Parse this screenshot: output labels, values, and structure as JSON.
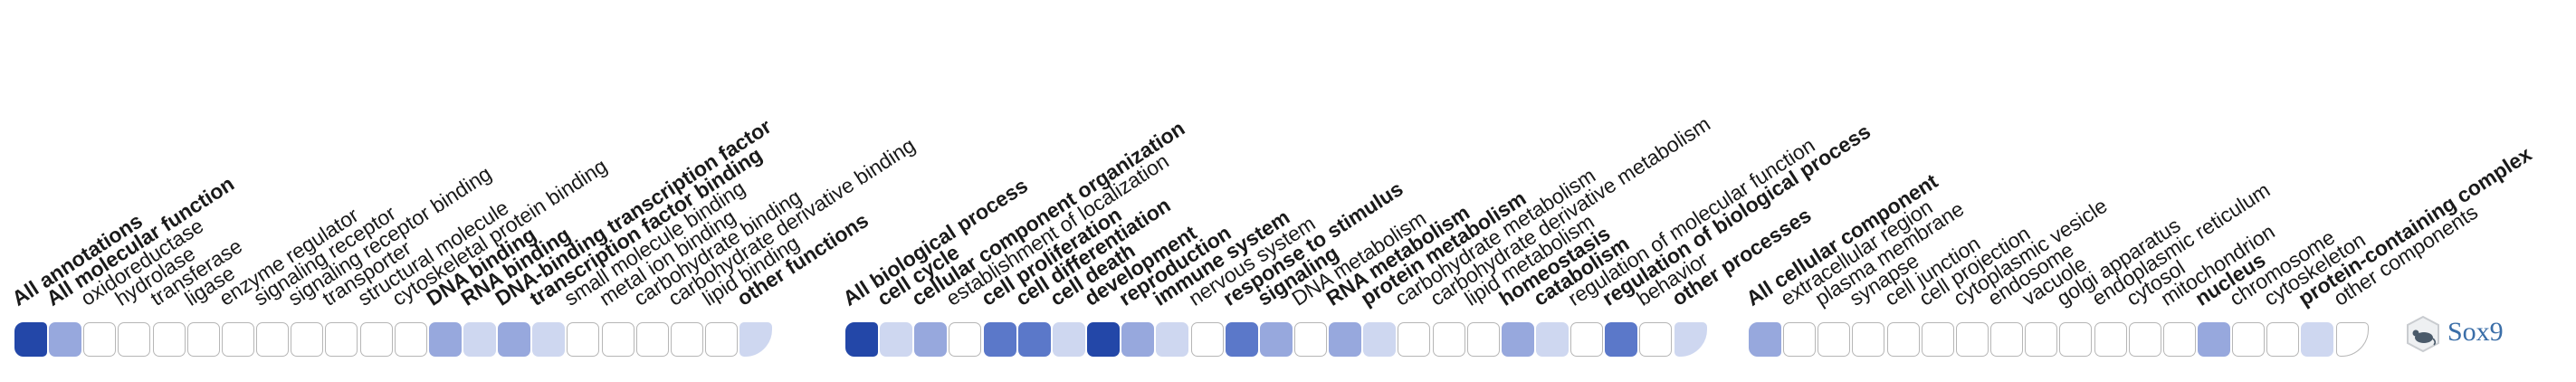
{
  "gene": {
    "symbol": "Sox9",
    "icon": "mouse-icon"
  },
  "colors": {
    "dark": "#2347a8",
    "strong": "#5b78c9",
    "medium": "#97a8dd",
    "light": "#ced7f0",
    "empty": "#ffffff"
  },
  "groups": [
    {
      "id": "molecular-function",
      "cells": [
        {
          "label": "All annotations",
          "bold": true,
          "level": "dark"
        },
        {
          "label": "All molecular function",
          "bold": true,
          "level": "medium"
        },
        {
          "label": "oxidoreductase",
          "bold": false,
          "level": "empty"
        },
        {
          "label": "hydrolase",
          "bold": false,
          "level": "empty"
        },
        {
          "label": "transferase",
          "bold": false,
          "level": "empty"
        },
        {
          "label": "ligase",
          "bold": false,
          "level": "empty"
        },
        {
          "label": "enzyme regulator",
          "bold": false,
          "level": "empty"
        },
        {
          "label": "signaling receptor",
          "bold": false,
          "level": "empty"
        },
        {
          "label": "signaling receptor binding",
          "bold": false,
          "level": "empty"
        },
        {
          "label": "transporter",
          "bold": false,
          "level": "empty"
        },
        {
          "label": "structural molecule",
          "bold": false,
          "level": "empty"
        },
        {
          "label": "cytoskeletal protein binding",
          "bold": false,
          "level": "empty"
        },
        {
          "label": "DNA binding",
          "bold": true,
          "level": "medium"
        },
        {
          "label": "RNA binding",
          "bold": true,
          "level": "light"
        },
        {
          "label": "DNA-binding transcription factor",
          "bold": true,
          "level": "medium"
        },
        {
          "label": "transcription factor binding",
          "bold": true,
          "level": "light"
        },
        {
          "label": "small molecule binding",
          "bold": false,
          "level": "empty"
        },
        {
          "label": "metal ion binding",
          "bold": false,
          "level": "empty"
        },
        {
          "label": "carbohydrate binding",
          "bold": false,
          "level": "empty"
        },
        {
          "label": "carbohydrate derivative binding",
          "bold": false,
          "level": "empty"
        },
        {
          "label": "lipid binding",
          "bold": false,
          "level": "empty"
        },
        {
          "label": "other functions",
          "bold": true,
          "level": "light"
        }
      ]
    },
    {
      "id": "biological-process",
      "cells": [
        {
          "label": "All biological process",
          "bold": true,
          "level": "dark"
        },
        {
          "label": "cell cycle",
          "bold": true,
          "level": "light"
        },
        {
          "label": "cellular component organization",
          "bold": true,
          "level": "medium"
        },
        {
          "label": "establishment of localization",
          "bold": false,
          "level": "empty"
        },
        {
          "label": "cell proliferation",
          "bold": true,
          "level": "strong"
        },
        {
          "label": "cell differentiation",
          "bold": true,
          "level": "strong"
        },
        {
          "label": "cell death",
          "bold": true,
          "level": "light"
        },
        {
          "label": "development",
          "bold": true,
          "level": "dark"
        },
        {
          "label": "reproduction",
          "bold": true,
          "level": "medium"
        },
        {
          "label": "immune system",
          "bold": true,
          "level": "light"
        },
        {
          "label": "nervous system",
          "bold": false,
          "level": "empty"
        },
        {
          "label": "response to stimulus",
          "bold": true,
          "level": "strong"
        },
        {
          "label": "signaling",
          "bold": true,
          "level": "medium"
        },
        {
          "label": "DNA metabolism",
          "bold": false,
          "level": "empty"
        },
        {
          "label": "RNA metabolism",
          "bold": true,
          "level": "medium"
        },
        {
          "label": "protein metabolism",
          "bold": true,
          "level": "light"
        },
        {
          "label": "carbohydrate metabolism",
          "bold": false,
          "level": "empty"
        },
        {
          "label": "carbohydrate derivative metabolism",
          "bold": false,
          "level": "empty"
        },
        {
          "label": "lipid metabolism",
          "bold": false,
          "level": "empty"
        },
        {
          "label": "homeostasis",
          "bold": true,
          "level": "medium"
        },
        {
          "label": "catabolism",
          "bold": true,
          "level": "light"
        },
        {
          "label": "regulation of molecular function",
          "bold": false,
          "level": "empty"
        },
        {
          "label": "regulation of biological process",
          "bold": true,
          "level": "strong"
        },
        {
          "label": "behavior",
          "bold": false,
          "level": "empty"
        },
        {
          "label": "other processes",
          "bold": true,
          "level": "light"
        }
      ]
    },
    {
      "id": "cellular-component",
      "cells": [
        {
          "label": "All cellular component",
          "bold": true,
          "level": "medium"
        },
        {
          "label": "extracellular region",
          "bold": false,
          "level": "empty"
        },
        {
          "label": "plasma membrane",
          "bold": false,
          "level": "empty"
        },
        {
          "label": "synapse",
          "bold": false,
          "level": "empty"
        },
        {
          "label": "cell junction",
          "bold": false,
          "level": "empty"
        },
        {
          "label": "cell projection",
          "bold": false,
          "level": "empty"
        },
        {
          "label": "cytoplasmic vesicle",
          "bold": false,
          "level": "empty"
        },
        {
          "label": "endosome",
          "bold": false,
          "level": "empty"
        },
        {
          "label": "vacuole",
          "bold": false,
          "level": "empty"
        },
        {
          "label": "golgi apparatus",
          "bold": false,
          "level": "empty"
        },
        {
          "label": "endoplasmic reticulum",
          "bold": false,
          "level": "empty"
        },
        {
          "label": "cytosol",
          "bold": false,
          "level": "empty"
        },
        {
          "label": "mitochondrion",
          "bold": false,
          "level": "empty"
        },
        {
          "label": "nucleus",
          "bold": true,
          "level": "medium"
        },
        {
          "label": "chromosome",
          "bold": false,
          "level": "empty"
        },
        {
          "label": "cytoskeleton",
          "bold": false,
          "level": "empty"
        },
        {
          "label": "protein-containing complex",
          "bold": true,
          "level": "light"
        },
        {
          "label": "other components",
          "bold": false,
          "level": "empty"
        }
      ]
    }
  ]
}
